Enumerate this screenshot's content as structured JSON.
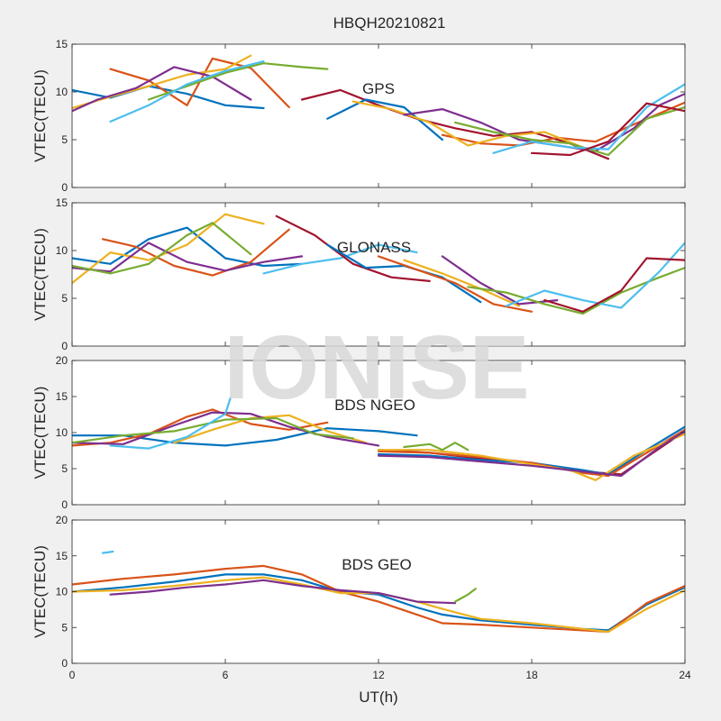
{
  "figure": {
    "title": "HBQH20210821",
    "xlabel": "UT(h)",
    "watermark": "IONISE"
  },
  "colors": [
    "#0072BD",
    "#D95319",
    "#EDB120",
    "#7E2F8E",
    "#77AC30",
    "#4DBEEE",
    "#A2142F"
  ],
  "chart_data": [
    {
      "type": "line",
      "annotation": "GPS",
      "ylabel": "VTEC(TECU)",
      "xlim": [
        0,
        24
      ],
      "ylim": [
        0,
        15
      ],
      "xticks": [
        0,
        6,
        12,
        18,
        24
      ],
      "yticks": [
        0,
        5,
        10,
        15
      ],
      "series": [
        {
          "x": [
            0,
            1.5,
            3,
            4.5,
            6,
            7.5
          ],
          "values": [
            10.2,
            9.4,
            10.6,
            9.8,
            8.6,
            8.3
          ]
        },
        {
          "x": [
            1.5,
            3,
            4.5,
            5.5,
            7,
            8.5
          ],
          "values": [
            12.4,
            11.2,
            8.6,
            13.5,
            12.5,
            8.4
          ]
        },
        {
          "x": [
            0,
            1.5,
            3,
            4.5,
            6,
            7
          ],
          "values": [
            8.3,
            9.5,
            10.6,
            11.8,
            12.4,
            13.8
          ]
        },
        {
          "x": [
            0,
            1,
            2.5,
            4,
            5.5,
            7
          ],
          "values": [
            8.0,
            9.2,
            10.4,
            12.6,
            11.6,
            9.2
          ]
        },
        {
          "x": [
            3,
            4.5,
            6,
            7.5,
            9,
            10
          ],
          "values": [
            9.2,
            10.6,
            12.0,
            13.0,
            12.6,
            12.4
          ]
        },
        {
          "x": [
            1.5,
            3,
            4.5,
            6,
            7.5
          ],
          "values": [
            6.9,
            8.6,
            10.8,
            12.2,
            13.2
          ]
        },
        {
          "x": [
            9,
            10.5,
            12,
            13.5,
            15,
            16.5,
            18,
            19.5,
            21
          ],
          "values": [
            9.2,
            10.2,
            8.6,
            7.2,
            6.2,
            5.4,
            5.8,
            4.6,
            3.0
          ]
        },
        {
          "x": [
            10,
            11.5,
            13,
            14.5
          ],
          "values": [
            7.2,
            9.2,
            8.4,
            5.0
          ]
        },
        {
          "x": [
            14.5,
            16,
            17.5,
            19,
            20.5,
            22,
            24
          ],
          "values": [
            5.5,
            4.6,
            4.4,
            5.2,
            4.8,
            6.6,
            8.9
          ]
        },
        {
          "x": [
            11,
            12.5,
            14,
            15.5,
            17,
            18.5,
            20
          ],
          "values": [
            9.0,
            8.2,
            6.8,
            4.4,
            5.4,
            5.8,
            4.2
          ]
        },
        {
          "x": [
            13,
            14.5,
            16,
            17.5,
            19,
            20.5,
            22,
            23,
            24
          ],
          "values": [
            7.6,
            8.2,
            6.8,
            5.0,
            4.4,
            3.8,
            6.2,
            8.6,
            9.8
          ]
        },
        {
          "x": [
            15,
            16.5,
            18,
            19.5,
            21,
            22.5,
            24
          ],
          "values": [
            6.8,
            5.8,
            5.0,
            4.6,
            3.4,
            7.2,
            8.4
          ]
        },
        {
          "x": [
            16.5,
            18,
            19.5,
            21,
            22.5,
            24
          ],
          "values": [
            3.6,
            4.8,
            4.2,
            4.0,
            8.4,
            10.8
          ]
        },
        {
          "x": [
            18,
            19.5,
            21,
            22.5,
            24
          ],
          "values": [
            3.6,
            3.4,
            4.8,
            8.8,
            8.0
          ]
        }
      ]
    },
    {
      "type": "line",
      "annotation": "GLONASS",
      "ylabel": "VTEC(TECU)",
      "xlim": [
        0,
        24
      ],
      "ylim": [
        0,
        15
      ],
      "xticks": [
        0,
        6,
        12,
        18,
        24
      ],
      "yticks": [
        0,
        5,
        10,
        15
      ],
      "series": [
        {
          "x": [
            0,
            1.5,
            3,
            4.5,
            6,
            7.5,
            9
          ],
          "values": [
            9.2,
            8.6,
            11.2,
            12.4,
            9.2,
            8.4,
            8.6
          ]
        },
        {
          "x": [
            1.2,
            2.5,
            4,
            5.5,
            7,
            8.5
          ],
          "values": [
            11.2,
            10.4,
            8.4,
            7.4,
            8.8,
            12.2
          ]
        },
        {
          "x": [
            0,
            1.5,
            3,
            4.5,
            6,
            7.5
          ],
          "values": [
            6.6,
            9.8,
            9.0,
            10.6,
            13.8,
            12.8
          ]
        },
        {
          "x": [
            0,
            1.5,
            3,
            4.5,
            6,
            7.5,
            9
          ],
          "values": [
            8.2,
            7.8,
            10.8,
            8.8,
            7.9,
            8.8,
            9.4
          ]
        },
        {
          "x": [
            0,
            1.5,
            3,
            4.5,
            5.5,
            7
          ],
          "values": [
            8.4,
            7.6,
            8.6,
            11.6,
            12.9,
            9.6
          ]
        },
        {
          "x": [
            7.5,
            9,
            10.5,
            12,
            13.5
          ],
          "values": [
            7.6,
            8.6,
            9.2,
            10.6,
            9.8
          ]
        },
        {
          "x": [
            8,
            9.5,
            11,
            12.5,
            14
          ],
          "values": [
            13.6,
            11.6,
            8.6,
            7.2,
            6.8
          ]
        },
        {
          "x": [
            10,
            11.5,
            13,
            14.5,
            16
          ],
          "values": [
            10.6,
            8.2,
            8.4,
            7.2,
            4.6
          ]
        },
        {
          "x": [
            12,
            13.5,
            15,
            16.5,
            18
          ],
          "values": [
            9.4,
            8.0,
            6.6,
            4.4,
            3.6
          ]
        },
        {
          "x": [
            13,
            14.5,
            16,
            17.5
          ],
          "values": [
            9.0,
            7.6,
            6.0,
            4.2
          ]
        },
        {
          "x": [
            14.5,
            16,
            17.5,
            19
          ],
          "values": [
            9.4,
            6.6,
            4.4,
            4.8
          ]
        },
        {
          "x": [
            15.5,
            17,
            18.5,
            20,
            21.5,
            23,
            24
          ],
          "values": [
            6.2,
            5.6,
            4.4,
            3.4,
            5.6,
            7.2,
            8.2
          ]
        },
        {
          "x": [
            17,
            18.5,
            20,
            21.5,
            23,
            24
          ],
          "values": [
            4.2,
            5.8,
            4.8,
            4.0,
            7.8,
            10.8
          ]
        },
        {
          "x": [
            18.5,
            20,
            21.5,
            22.5,
            24
          ],
          "values": [
            4.8,
            3.6,
            5.8,
            9.2,
            9.0
          ]
        }
      ]
    },
    {
      "type": "line",
      "annotation": "BDS NGEO",
      "ylabel": "VTEC(TECU)",
      "xlim": [
        0,
        24
      ],
      "ylim": [
        0,
        20
      ],
      "xticks": [
        0,
        6,
        12,
        18,
        24
      ],
      "yticks": [
        0,
        5,
        10,
        15,
        20
      ],
      "series": [
        {
          "x": [
            0,
            2,
            4,
            6,
            8,
            10,
            12,
            13.5
          ],
          "values": [
            9.6,
            9.6,
            8.6,
            8.2,
            9.0,
            10.6,
            10.2,
            9.6
          ]
        },
        {
          "x": [
            0,
            1.5,
            3,
            4.5,
            5.5,
            7,
            8.5,
            10
          ],
          "values": [
            8.2,
            8.6,
            9.8,
            12.2,
            13.2,
            11.2,
            10.4,
            11.4
          ]
        },
        {
          "x": [
            4,
            5.5,
            7,
            8.5,
            10,
            11.5
          ],
          "values": [
            8.6,
            10.4,
            12.0,
            12.4,
            10.2,
            8.6
          ]
        },
        {
          "x": [
            0,
            2,
            4,
            5.5,
            7,
            8.5,
            10,
            12
          ],
          "values": [
            8.6,
            8.4,
            11.0,
            12.8,
            12.6,
            10.8,
            9.4,
            8.2
          ]
        },
        {
          "x": [
            0,
            2,
            4,
            6,
            8,
            9.5,
            11
          ],
          "values": [
            8.6,
            9.6,
            10.2,
            11.8,
            12.0,
            9.8,
            9.2
          ]
        },
        {
          "x": [
            1.5,
            3,
            4.5,
            6,
            6.2
          ],
          "values": [
            8.2,
            7.8,
            9.4,
            12.6,
            14.8
          ]
        },
        {
          "x": [
            12,
            14,
            16,
            18,
            20,
            21.5,
            22.5,
            24
          ],
          "values": [
            7.6,
            7.2,
            6.4,
            5.8,
            4.6,
            4.2,
            6.6,
            10.2
          ]
        },
        {
          "x": [
            12,
            14,
            16,
            18,
            20,
            21,
            22.5,
            24
          ],
          "values": [
            7.0,
            6.8,
            6.2,
            5.8,
            4.8,
            4.2,
            7.6,
            10.8
          ]
        },
        {
          "x": [
            12,
            14,
            16,
            18,
            20,
            21,
            22.5,
            24
          ],
          "values": [
            7.4,
            7.2,
            6.6,
            5.8,
            4.4,
            4.0,
            7.2,
            10.4
          ]
        },
        {
          "x": [
            12,
            14,
            16,
            18,
            19.5,
            20.5,
            22,
            24
          ],
          "values": [
            7.6,
            7.6,
            6.8,
            5.6,
            4.8,
            3.4,
            6.8,
            9.8
          ]
        },
        {
          "x": [
            12,
            14,
            16,
            18,
            20,
            21.5,
            23,
            24
          ],
          "values": [
            6.8,
            6.6,
            6.0,
            5.4,
            4.6,
            4.0,
            8.0,
            10.2
          ]
        },
        {
          "x": [
            13,
            14,
            14.5,
            15,
            15.5
          ],
          "values": [
            8.0,
            8.4,
            7.6,
            8.6,
            7.6
          ]
        }
      ]
    },
    {
      "type": "line",
      "annotation": "BDS GEO",
      "ylabel": "VTEC(TECU)",
      "xlim": [
        0,
        24
      ],
      "ylim": [
        0,
        20
      ],
      "xticks": [
        0,
        6,
        12,
        18,
        24
      ],
      "yticks": [
        0,
        5,
        10,
        15,
        20
      ],
      "series": [
        {
          "x": [
            0,
            2,
            4,
            6,
            7.5,
            9,
            10.5,
            12,
            13.5,
            14.5,
            16,
            18,
            20,
            21,
            22.5,
            24
          ],
          "values": [
            10.0,
            10.6,
            11.4,
            12.4,
            12.4,
            11.6,
            10.0,
            9.6,
            7.8,
            6.8,
            6.0,
            5.4,
            4.8,
            4.6,
            8.2,
            10.6
          ]
        },
        {
          "x": [
            0,
            2,
            4,
            6,
            7.5,
            9,
            10.5,
            12,
            13.5,
            14.5,
            16,
            18,
            20,
            21,
            22.5,
            24
          ],
          "values": [
            11.0,
            11.8,
            12.4,
            13.2,
            13.6,
            12.4,
            10.0,
            8.6,
            6.8,
            5.6,
            5.4,
            5.0,
            4.6,
            4.4,
            8.4,
            10.8
          ]
        },
        {
          "x": [
            0,
            2,
            4,
            6,
            7.5,
            9,
            10.5,
            12,
            13.5,
            14.5,
            16,
            18,
            20,
            21,
            22.5,
            24
          ],
          "values": [
            10.0,
            10.2,
            10.8,
            11.6,
            12.0,
            11.0,
            9.8,
            9.8,
            8.6,
            7.6,
            6.2,
            5.6,
            4.8,
            4.4,
            7.6,
            10.2
          ]
        },
        {
          "x": [
            1.5,
            3,
            4.5,
            6,
            7.5,
            9,
            10.5,
            12,
            13.5,
            15
          ],
          "values": [
            9.6,
            10.0,
            10.6,
            11.0,
            11.6,
            10.8,
            10.2,
            9.8,
            8.6,
            8.4
          ]
        },
        {
          "x": [
            15,
            15.5,
            15.8
          ],
          "values": [
            8.6,
            9.6,
            10.4
          ]
        },
        {
          "x": [
            1.2,
            1.6
          ],
          "values": [
            15.4,
            15.6
          ]
        }
      ]
    }
  ]
}
